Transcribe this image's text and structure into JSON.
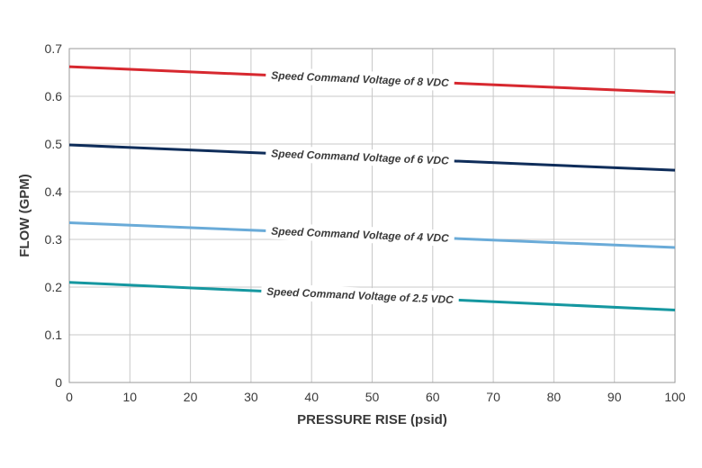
{
  "chart_data": {
    "type": "line",
    "title": "",
    "xlabel": "PRESSURE RISE (psid)",
    "ylabel": "FLOW (GPM)",
    "xlim": [
      0,
      100
    ],
    "ylim": [
      0,
      0.7
    ],
    "xticks": [
      0,
      10,
      20,
      30,
      40,
      50,
      60,
      70,
      80,
      90,
      100
    ],
    "yticks": [
      0,
      0.1,
      0.2,
      0.3,
      0.4,
      0.5,
      0.6,
      0.7
    ],
    "xtick_labels": [
      "0",
      "10",
      "20",
      "30",
      "40",
      "50",
      "60",
      "70",
      "80",
      "90",
      "100"
    ],
    "ytick_labels": [
      "0",
      "0.1",
      "0.2",
      "0.3",
      "0.4",
      "0.5",
      "0.6",
      "0.7"
    ],
    "grid": true,
    "legend": "inline labels on lines",
    "series": [
      {
        "name": "Speed Command Voltage of 8 VDC",
        "color": "#d7282f",
        "x": [
          0,
          100
        ],
        "y": [
          0.662,
          0.608
        ],
        "label_x": 48
      },
      {
        "name": "Speed Command Voltage of 6 VDC",
        "color": "#0f2d5a",
        "x": [
          0,
          100
        ],
        "y": [
          0.498,
          0.445
        ],
        "label_x": 48
      },
      {
        "name": "Speed Command Voltage of 4 VDC",
        "color": "#6aabd8",
        "x": [
          0,
          100
        ],
        "y": [
          0.335,
          0.283
        ],
        "label_x": 48
      },
      {
        "name": "Speed Command Voltage of 2.5 VDC",
        "color": "#1597a0",
        "x": [
          0,
          100
        ],
        "y": [
          0.21,
          0.152
        ],
        "label_x": 48
      }
    ]
  }
}
